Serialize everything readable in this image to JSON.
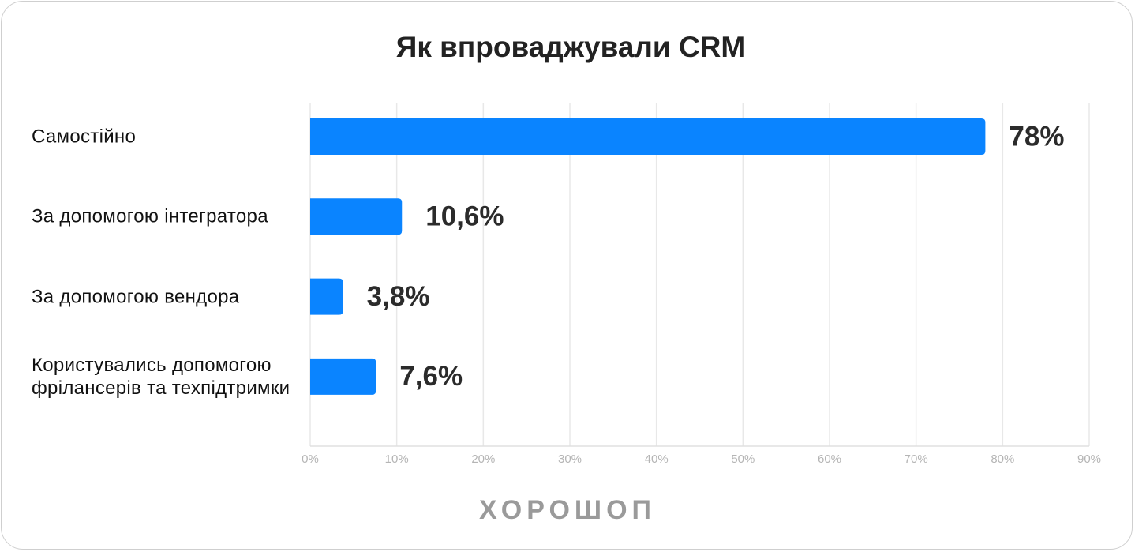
{
  "chart_data": {
    "type": "bar",
    "orientation": "horizontal",
    "title": "Як впроваджували CRM",
    "categories": [
      "Самостійно",
      "За допомогою інтегратора",
      "За допомогою вендора",
      "Користувались допомогою фрілансерів та техпідтримки"
    ],
    "values": [
      78,
      10.6,
      3.8,
      7.6
    ],
    "value_labels": [
      "78%",
      "10,6%",
      "3,8%",
      "7,6%"
    ],
    "color": "#0a84ff",
    "xlim": [
      0,
      90
    ],
    "xticks": [
      {
        "value": 0,
        "label": "0%"
      },
      {
        "value": 10,
        "label": "10%"
      },
      {
        "value": 20,
        "label": "20%"
      },
      {
        "value": 30,
        "label": "30%"
      },
      {
        "value": 40,
        "label": "40%"
      },
      {
        "value": 50,
        "label": "50%"
      },
      {
        "value": 60,
        "label": "60%"
      },
      {
        "value": 70,
        "label": "70%"
      },
      {
        "value": 80,
        "label": "80%"
      },
      {
        "value": 90,
        "label": "90%"
      }
    ],
    "grid": true,
    "footer": "ХОРОШОП"
  }
}
